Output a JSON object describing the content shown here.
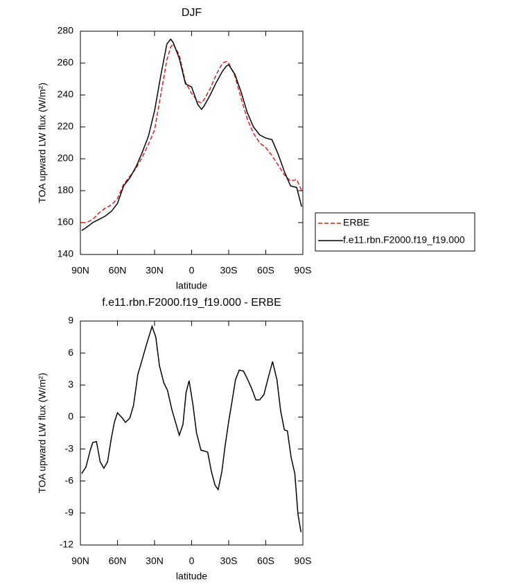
{
  "chart_data": [
    {
      "type": "line",
      "title": "DJF",
      "x_label": "latitude",
      "y_label": "TOA upward LW flux (W/m²)",
      "x": [
        89,
        85,
        80,
        75,
        70,
        65,
        60,
        55,
        50,
        45,
        40,
        35,
        30,
        25,
        20,
        17,
        15,
        10,
        5,
        0,
        -5,
        -8,
        -10,
        -15,
        -20,
        -25,
        -28,
        -30,
        -35,
        -40,
        -45,
        -50,
        -55,
        -60,
        -65,
        -70,
        -75,
        -80,
        -85,
        -89
      ],
      "series": [
        {
          "name": "ERBE",
          "color": "#e41a1c",
          "dashed": true,
          "values": [
            160,
            160,
            162,
            166,
            169,
            171,
            175,
            184,
            189,
            194,
            201,
            209,
            218,
            240,
            262,
            270,
            272,
            265,
            248,
            241,
            236,
            235,
            237,
            244,
            253,
            260,
            261,
            260,
            252,
            238,
            225,
            216,
            210,
            207,
            202,
            196,
            190,
            186,
            187,
            180
          ]
        },
        {
          "name": "f.e11.rbn.F2000.f19_f19.000",
          "color": "#000000",
          "dashed": false,
          "values": [
            155,
            157,
            160,
            162,
            164,
            167,
            172,
            183,
            188,
            195,
            204,
            214,
            230,
            252,
            272,
            275,
            273,
            263,
            247,
            245,
            234,
            231,
            233,
            240,
            248,
            255,
            258,
            259,
            253,
            242,
            229,
            220,
            215,
            213,
            212,
            203,
            192,
            183,
            182,
            170
          ]
        }
      ],
      "xlim": [
        90,
        -90
      ],
      "xticks": [
        {
          "value": 90,
          "label": "90N"
        },
        {
          "value": 60,
          "label": "60N"
        },
        {
          "value": 30,
          "label": "30N"
        },
        0,
        {
          "value": -30,
          "label": "30S"
        },
        {
          "value": -60,
          "label": "60S"
        },
        {
          "value": -90,
          "label": "90S"
        }
      ],
      "ylim": [
        140,
        280
      ],
      "yticks": [
        140,
        160,
        180,
        200,
        220,
        240,
        260,
        280
      ],
      "legend": "right"
    },
    {
      "type": "line",
      "title": "f.e11.rbn.F2000.f19_f19.000 - ERBE",
      "x_label": "latitude",
      "y_label": "TOA upward LW flux (W/m²)",
      "x": [
        89,
        85.5,
        82,
        80,
        77,
        74,
        71,
        68,
        65,
        62.5,
        60,
        56,
        53.5,
        50,
        47,
        43.5,
        40,
        36.5,
        32,
        29,
        26,
        22.5,
        19.5,
        16,
        12.5,
        10,
        7,
        4.5,
        2,
        -1,
        -4,
        -7.5,
        -10.5,
        -13,
        -16,
        -19,
        -21.5,
        -24.5,
        -27,
        -30,
        -33,
        -35.5,
        -38.5,
        -42,
        -45,
        -48.5,
        -52,
        -55,
        -58.5,
        -62,
        -65.5,
        -69,
        -72,
        -75,
        -77.5,
        -80.5,
        -83.5,
        -86,
        -88.5
      ],
      "values": [
        -5.3,
        -4.7,
        -3.1,
        -2.4,
        -2.3,
        -4.2,
        -4.8,
        -4.2,
        -2.0,
        -0.5,
        0.4,
        -0.1,
        -0.5,
        -0.1,
        1.1,
        4.0,
        5.4,
        6.8,
        8.5,
        7.5,
        4.8,
        3.2,
        2.5,
        0.7,
        -0.7,
        -1.7,
        -0.7,
        2.3,
        3.4,
        1.2,
        -1.5,
        -3.1,
        -3.2,
        -3.3,
        -5.1,
        -6.4,
        -6.8,
        -5.1,
        -2.8,
        -0.4,
        1.7,
        3.5,
        4.4,
        4.3,
        3.6,
        2.7,
        1.6,
        1.6,
        2.1,
        3.7,
        5.2,
        3.5,
        0.6,
        -1.2,
        -1.3,
        -3.8,
        -5.3,
        -9.1,
        -10.8
      ],
      "color": "#000000",
      "xlim": [
        90,
        -90
      ],
      "xticks": [
        {
          "value": 90,
          "label": "90N"
        },
        {
          "value": 60,
          "label": "60N"
        },
        {
          "value": 30,
          "label": "30N"
        },
        0,
        {
          "value": -30,
          "label": "30S"
        },
        {
          "value": -60,
          "label": "60S"
        },
        {
          "value": -90,
          "label": "90S"
        }
      ],
      "ylim": [
        -12,
        9
      ],
      "yticks": [
        -12,
        -9,
        -6,
        -3,
        0,
        3,
        6,
        9
      ]
    }
  ]
}
